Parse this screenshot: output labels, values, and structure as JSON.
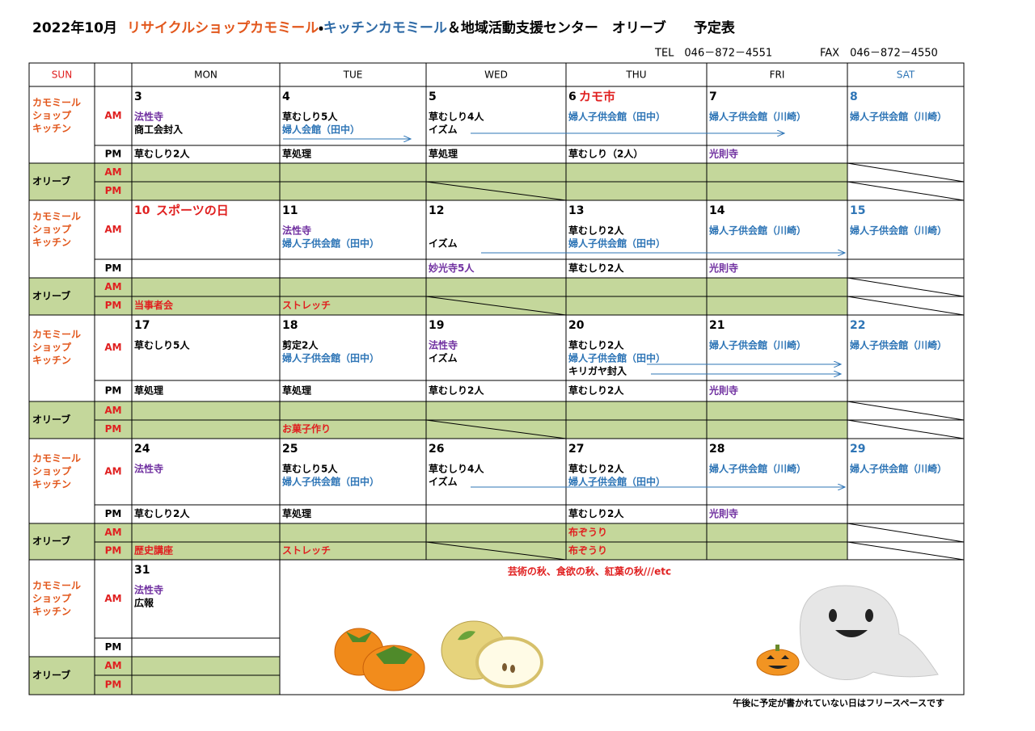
{
  "header": {
    "title_parts": [
      {
        "text": "2022年10月",
        "color": "#000000"
      },
      {
        "text": "リサイクルショップカモミール",
        "color": "#e2571c"
      },
      {
        "text": "・",
        "color": "#000000"
      },
      {
        "text": "キッチンカモミール",
        "color": "#2e6aa6"
      },
      {
        "text": "＆地域活動支援センター　オリーブ　　予定表",
        "color": "#000000"
      }
    ],
    "tel": "TEL　046－872－4551",
    "fax": "FAX　046－872－4550"
  },
  "days": [
    "SUN",
    "MON",
    "TUE",
    "WED",
    "THU",
    "FRI",
    "SAT"
  ],
  "row_labels": {
    "kamomile": [
      "カモミール",
      "ショップ",
      "キッチン"
    ],
    "olive": "オリーブ",
    "am": "AM",
    "pm": "PM"
  },
  "weeks": [
    {
      "days": [
        {
          "date": "3",
          "am": [
            {
              "text": "法性寺",
              "color": "#7030a0"
            },
            {
              "text": "商工会封入"
            }
          ],
          "pm": [
            {
              "text": "草むしり2人"
            }
          ]
        },
        {
          "date": "4",
          "am": [
            {
              "text": "草むしり5人"
            },
            {
              "text": "婦人会館（田中）",
              "color": "#2e75b6"
            }
          ],
          "pm": [
            {
              "text": "草処理"
            }
          ]
        },
        {
          "date": "5",
          "am": [
            {
              "text": "草むしり4人"
            },
            {
              "text": "イズム"
            }
          ],
          "pm": [
            {
              "text": "草処理"
            }
          ]
        },
        {
          "date": "6",
          "event": "カモ市",
          "event_color": "#e02020",
          "am": [
            {
              "text": "婦人子供会館（田中）",
              "color": "#2e75b6"
            }
          ],
          "pm": [
            {
              "text": "草むしり（2人）"
            }
          ]
        },
        {
          "date": "7",
          "am": [
            {
              "text": "婦人子供会館（川崎）",
              "color": "#2e75b6"
            }
          ],
          "pm": [
            {
              "text": "光則寺",
              "color": "#7030a0"
            }
          ]
        },
        {
          "date": "8",
          "date_color": "#2e75b6",
          "am": [
            {
              "text": "婦人子供会館（川崎）",
              "color": "#2e75b6"
            }
          ]
        }
      ]
    },
    {
      "days": [
        {
          "date": "10",
          "date_color": "#e02020",
          "event": "スポーツの日",
          "event_color": "#e02020",
          "olive_pm": [
            {
              "text": "当事者会",
              "color": "#e02020"
            }
          ]
        },
        {
          "date": "11",
          "am": [
            {
              "text": "法性寺",
              "color": "#7030a0"
            },
            {
              "text": "婦人子供会館（田中）",
              "color": "#2e75b6"
            }
          ],
          "olive_pm": [
            {
              "text": "ストレッチ",
              "color": "#e02020"
            }
          ]
        },
        {
          "date": "12",
          "am": [
            null,
            {
              "text": "イズム"
            }
          ],
          "pm": [
            {
              "text": "妙光寺5人",
              "color": "#7030a0"
            }
          ]
        },
        {
          "date": "13",
          "am": [
            {
              "text": "草むしり2人"
            },
            {
              "text": "婦人子供会館（田中）",
              "color": "#2e75b6"
            }
          ],
          "pm": [
            {
              "text": "草むしり2人"
            }
          ]
        },
        {
          "date": "14",
          "am": [
            {
              "text": "婦人子供会館（川崎）",
              "color": "#2e75b6"
            }
          ],
          "pm": [
            {
              "text": "光則寺",
              "color": "#7030a0"
            }
          ]
        },
        {
          "date": "15",
          "date_color": "#2e75b6",
          "am": [
            {
              "text": "婦人子供会館（川崎）",
              "color": "#2e75b6"
            }
          ]
        }
      ]
    },
    {
      "days": [
        {
          "date": "17",
          "am": [
            {
              "text": "草むしり5人"
            }
          ],
          "pm": [
            {
              "text": "草処理"
            }
          ]
        },
        {
          "date": "18",
          "am": [
            {
              "text": "剪定2人"
            },
            {
              "text": "婦人子供会館（田中）",
              "color": "#2e75b6"
            }
          ],
          "pm": [
            {
              "text": "草処理"
            }
          ],
          "olive_pm": [
            {
              "text": "お菓子作り",
              "color": "#e02020"
            }
          ]
        },
        {
          "date": "19",
          "am": [
            {
              "text": "法性寺",
              "color": "#7030a0"
            },
            {
              "text": "イズム"
            }
          ],
          "pm": [
            {
              "text": "草むしり2人"
            }
          ]
        },
        {
          "date": "20",
          "am": [
            {
              "text": "草むしり2人"
            },
            {
              "text": "婦人子供会館（田中）",
              "color": "#2e75b6"
            },
            {
              "text": "キリガヤ封入"
            }
          ],
          "pm": [
            {
              "text": "草むしり2人"
            }
          ]
        },
        {
          "date": "21",
          "am": [
            {
              "text": "婦人子供会館（川崎）",
              "color": "#2e75b6"
            }
          ],
          "pm": [
            {
              "text": "光則寺",
              "color": "#7030a0"
            }
          ]
        },
        {
          "date": "22",
          "date_color": "#2e75b6",
          "am": [
            {
              "text": "婦人子供会館（川崎）",
              "color": "#2e75b6"
            }
          ]
        }
      ]
    },
    {
      "days": [
        {
          "date": "24",
          "am": [
            {
              "text": "法性寺",
              "color": "#7030a0"
            }
          ],
          "pm": [
            {
              "text": "草むしり2人"
            }
          ],
          "olive_pm": [
            {
              "text": "歴史講座",
              "color": "#e02020"
            }
          ]
        },
        {
          "date": "25",
          "am": [
            {
              "text": "草むしり5人"
            },
            {
              "text": "婦人子供会館（田中）",
              "color": "#2e75b6"
            }
          ],
          "pm": [
            {
              "text": "草処理"
            }
          ],
          "olive_pm": [
            {
              "text": "ストレッチ",
              "color": "#e02020"
            }
          ]
        },
        {
          "date": "26",
          "am": [
            {
              "text": "草むしり4人"
            },
            {
              "text": "イズム"
            }
          ]
        },
        {
          "date": "27",
          "am": [
            {
              "text": "草むしり2人"
            },
            {
              "text": "婦人子供会館（田中）",
              "color": "#2e75b6"
            }
          ],
          "pm": [
            {
              "text": "草むしり2人"
            }
          ],
          "olive_am": [
            {
              "text": "布ぞうり",
              "color": "#e02020"
            }
          ],
          "olive_pm": [
            {
              "text": "布ぞうり",
              "color": "#e02020"
            }
          ]
        },
        {
          "date": "28",
          "am": [
            {
              "text": "婦人子供会館（川崎）",
              "color": "#2e75b6"
            }
          ],
          "pm": [
            {
              "text": "光則寺",
              "color": "#7030a0"
            }
          ]
        },
        {
          "date": "29",
          "date_color": "#2e75b6",
          "am": [
            {
              "text": "婦人子供会館（川崎）",
              "color": "#2e75b6"
            }
          ]
        }
      ]
    },
    {
      "days": [
        {
          "date": "31",
          "am": [
            {
              "text": "法性寺",
              "color": "#7030a0"
            },
            {
              "text": "広報"
            }
          ]
        }
      ],
      "note": "芸術の秋、食欲の秋、紅葉の秋///etc"
    }
  ],
  "footer": "午後に予定が書かれていない日はフリースペースです"
}
